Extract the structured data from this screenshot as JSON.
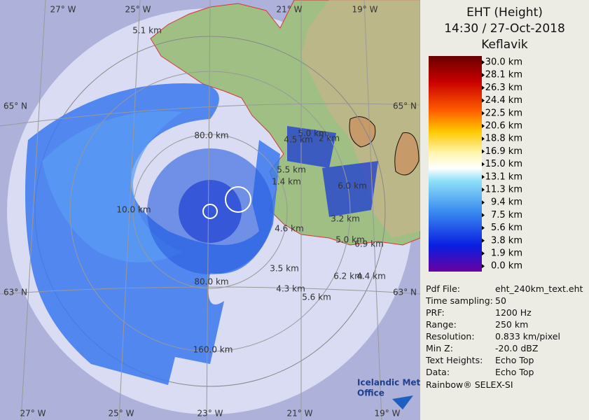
{
  "header": {
    "title": "EHT (Height)",
    "time": "14:30 / 27-Oct-2018",
    "site": "Keflavik"
  },
  "legend": {
    "labels": [
      "30.0 km",
      "28.1 km",
      "26.3 km",
      "24.4 km",
      "22.5 km",
      "20.6 km",
      "18.8 km",
      "16.9 km",
      "15.0 km",
      "13.1 km",
      "11.3 km",
      "9.4 km",
      "7.5 km",
      "5.6 km",
      "3.8 km",
      "1.9 km",
      "0.0 km"
    ]
  },
  "info": {
    "rows": [
      [
        "Pdf File:",
        "eht_240km_text.eht"
      ],
      [
        "Time sampling:",
        "50"
      ],
      [
        "PRF:",
        "1200 Hz"
      ],
      [
        "Range:",
        "250 km"
      ],
      [
        "Resolution:",
        "0.833 km/pixel"
      ],
      [
        "Min Z:",
        "-20.0 dBZ"
      ],
      [
        "Text Heights:",
        "Echo Top"
      ],
      [
        "Data:",
        "Echo Top"
      ]
    ],
    "footer": "Rainbow® SELEX-SI"
  },
  "map": {
    "lon_labels_top": [
      "27° W",
      "25° W",
      "21° W",
      "19° W"
    ],
    "lon_labels_bottom": [
      "27° W",
      "25° W",
      "23° W",
      "21° W",
      "19° W"
    ],
    "lat_labels": [
      "65° N",
      "65° N",
      "63° N",
      "63° N"
    ],
    "range_labels": [
      "80.0 km",
      "80.0 km",
      "160.0 km"
    ],
    "echo_labels": [
      "5.1 km",
      "5.0 km",
      "4.5 km",
      "2 km",
      "5.5 km",
      "1.4 km",
      "6.0 km",
      "10.0 km",
      "4.6 km",
      "3.2 km",
      "5.0 km",
      "6.9 km",
      "3.5 km",
      "6.2 km",
      "4.4 km",
      "4.3 km",
      "5.6 km"
    ]
  },
  "logo": {
    "line1": "Icelandic Met",
    "line2": "Office"
  }
}
